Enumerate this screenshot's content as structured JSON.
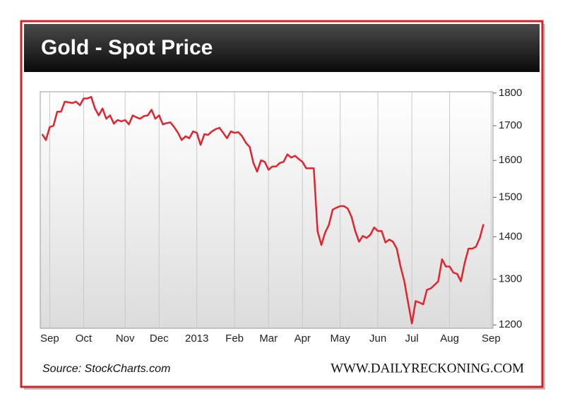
{
  "chart_data": {
    "type": "line",
    "title": "Gold - Spot Price",
    "source": "Source: StockCharts.com",
    "credit": "WWW.DAILYRECKONING.COM",
    "categories": [
      null,
      null,
      "Sep",
      null,
      null,
      null,
      null,
      null,
      null,
      null,
      null,
      "Oct",
      null,
      null,
      null,
      null,
      null,
      null,
      null,
      null,
      null,
      null,
      "Nov",
      null,
      null,
      null,
      null,
      null,
      null,
      null,
      null,
      "Dec",
      null,
      null,
      null,
      null,
      null,
      null,
      null,
      null,
      null,
      "2013",
      null,
      null,
      null,
      null,
      null,
      null,
      null,
      null,
      null,
      "Feb",
      null,
      null,
      null,
      null,
      null,
      null,
      null,
      null,
      "Mar",
      null,
      null,
      null,
      null,
      null,
      null,
      null,
      null,
      "Apr",
      null,
      null,
      null,
      null,
      null,
      null,
      null,
      null,
      null,
      "May",
      null,
      null,
      null,
      null,
      null,
      null,
      null,
      null,
      null,
      "Jun",
      null,
      null,
      null,
      null,
      null,
      null,
      null,
      null,
      "Jul",
      null,
      null,
      null,
      null,
      null,
      null,
      null,
      null,
      null,
      "Aug",
      null,
      null,
      null,
      null,
      null,
      null,
      null,
      null,
      null,
      null,
      "Sep"
    ],
    "series": [
      {
        "color": "#e3232b",
        "values": [
          1675,
          1658,
          1696,
          1700,
          1742,
          1742,
          1773,
          1771,
          1769,
          1773,
          1762,
          1783,
          1783,
          1788,
          1752,
          1731,
          1752,
          1721,
          1731,
          1706,
          1717,
          1713,
          1717,
          1704,
          1731,
          1725,
          1721,
          1729,
          1731,
          1748,
          1721,
          1731,
          1704,
          1708,
          1710,
          1696,
          1679,
          1658,
          1669,
          1663,
          1683,
          1679,
          1644,
          1675,
          1673,
          1683,
          1690,
          1694,
          1679,
          1663,
          1683,
          1679,
          1681,
          1669,
          1650,
          1638,
          1593,
          1569,
          1600,
          1596,
          1574,
          1583,
          1583,
          1593,
          1596,
          1617,
          1608,
          1613,
          1604,
          1596,
          1578,
          1578,
          1578,
          1414,
          1380,
          1410,
          1429,
          1468,
          1473,
          1477,
          1477,
          1471,
          1450,
          1414,
          1388,
          1402,
          1397,
          1405,
          1423,
          1414,
          1414,
          1386,
          1393,
          1388,
          1371,
          1329,
          1295,
          1248,
          1203,
          1251,
          1248,
          1244,
          1276,
          1279,
          1287,
          1295,
          1346,
          1329,
          1329,
          1315,
          1312,
          1295,
          1337,
          1371,
          1371,
          1376,
          1397,
          1431,
          null,
          null
        ]
      }
    ],
    "ylim": [
      1193,
      1804
    ],
    "yticks": [
      1200,
      1300,
      1400,
      1500,
      1600,
      1700,
      1800
    ],
    "log_y": true,
    "x_grid": true
  }
}
